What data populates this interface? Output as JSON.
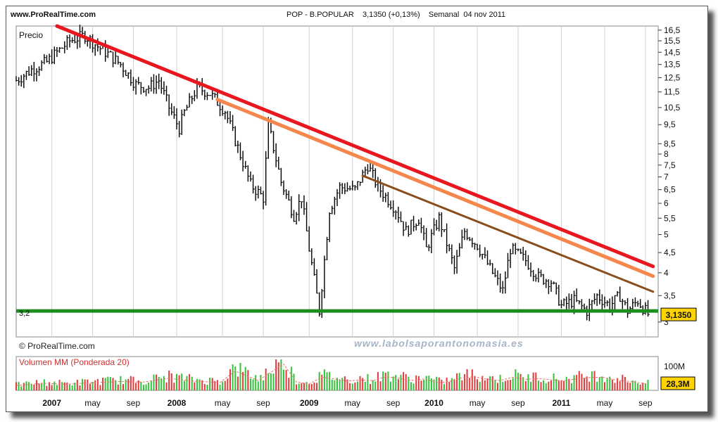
{
  "header": {
    "site": "www.ProRealTime.com",
    "title": "POP - B.POPULAR    3,1350 (+0,13%)    Semanal  04 nov 2011"
  },
  "price_panel": {
    "label": "Precio",
    "support_label": "3,2",
    "last_price_label": "3,1350",
    "copyright": "© ProRealTime.com",
    "watermark": "www.labolsaporantonomasia.es"
  },
  "volume_panel": {
    "label": "Volumen MM (Ponderada 20)",
    "scale_label": "100M",
    "last_volume_label": "28,3M"
  },
  "colors": {
    "trend_red": "#e8161e",
    "trend_orange": "#f5864c",
    "trend_brown": "#8a4e1c",
    "support_green": "#1c8c1c",
    "last_price_box": "#ffd400",
    "volume_up": "#33c23a",
    "volume_down": "#e03a3a",
    "volume_ma": "#ee6f6f"
  },
  "chart_data": {
    "type": "line",
    "subtype": "weekly price bars with trendlines and volume",
    "y_scale": "log",
    "price_ylim": [
      2.75,
      16.9
    ],
    "y_ticks": [
      "16,5",
      "15,5",
      "14,5",
      "13,5",
      "12,5",
      "11,5",
      "10,5",
      "9,5",
      "8,5",
      "8",
      "7,5",
      "7",
      "6,5",
      "6",
      "5,5",
      "5",
      "4,5",
      "4",
      "3,5",
      "3"
    ],
    "x_ticks": [
      "2007",
      "may",
      "sep",
      "2008",
      "may",
      "sep",
      "2009",
      "may",
      "sep",
      "2010",
      "may",
      "sep",
      "2011",
      "may",
      "sep"
    ],
    "series": [
      {
        "kind": "price",
        "t": [
          0,
          6,
          12,
          16,
          21,
          27,
          32,
          37,
          41,
          47,
          52,
          56,
          60,
          64,
          66,
          71,
          76,
          82,
          87,
          92,
          97,
          99,
          104,
          109,
          112,
          115,
          119,
          123,
          127,
          133,
          138,
          142,
          149,
          153,
          158,
          161,
          166,
          172,
          176,
          181,
          186,
          191,
          194,
          200,
          205,
          210,
          214,
          219,
          224,
          228,
          233,
          237,
          240,
          244,
          248
        ],
        "close": [
          12.3,
          13.1,
          13.7,
          14.5,
          15.5,
          16.0,
          15.0,
          14.2,
          13.5,
          12.0,
          11.8,
          12.3,
          10.5,
          9.3,
          10.2,
          11.8,
          11.4,
          10.3,
          8.3,
          6.7,
          6.2,
          9.5,
          6.8,
          5.6,
          6.2,
          4.6,
          3.2,
          5.8,
          6.6,
          6.5,
          7.5,
          6.6,
          5.8,
          5.1,
          5.5,
          4.6,
          5.5,
          4.1,
          5.1,
          4.7,
          4.1,
          3.6,
          4.6,
          4.3,
          3.9,
          3.8,
          3.3,
          3.4,
          3.2,
          3.5,
          3.3,
          3.5,
          3.2,
          3.4,
          3.135
        ]
      }
    ],
    "trendlines": [
      {
        "name": "red",
        "from": {
          "t": 16,
          "price": 16.9
        },
        "to": {
          "t": 250,
          "price": 4.15
        }
      },
      {
        "name": "orange",
        "from": {
          "t": 79,
          "price": 11.0
        },
        "to": {
          "t": 250,
          "price": 3.92
        }
      },
      {
        "name": "brown",
        "from": {
          "t": 136,
          "price": 7.05
        },
        "to": {
          "t": 250,
          "price": 3.58
        }
      }
    ],
    "support": {
      "price": 3.2
    },
    "volume": {
      "scale_max_label": "100M",
      "t": [
        0,
        10,
        20,
        30,
        40,
        50,
        60,
        70,
        80,
        86,
        95,
        105,
        110,
        115,
        120,
        125,
        130,
        135,
        140,
        145,
        150,
        155,
        160,
        166,
        170,
        175,
        180,
        185,
        190,
        195,
        200,
        205,
        210,
        215,
        220,
        225,
        230,
        235,
        240,
        248
      ],
      "values_m": [
        22,
        32,
        28,
        35,
        40,
        38,
        55,
        42,
        36,
        88,
        45,
        120,
        38,
        30,
        60,
        52,
        42,
        48,
        44,
        62,
        56,
        45,
        52,
        35,
        40,
        58,
        62,
        50,
        45,
        60,
        50,
        54,
        48,
        44,
        52,
        58,
        60,
        48,
        42,
        28.3
      ]
    }
  }
}
